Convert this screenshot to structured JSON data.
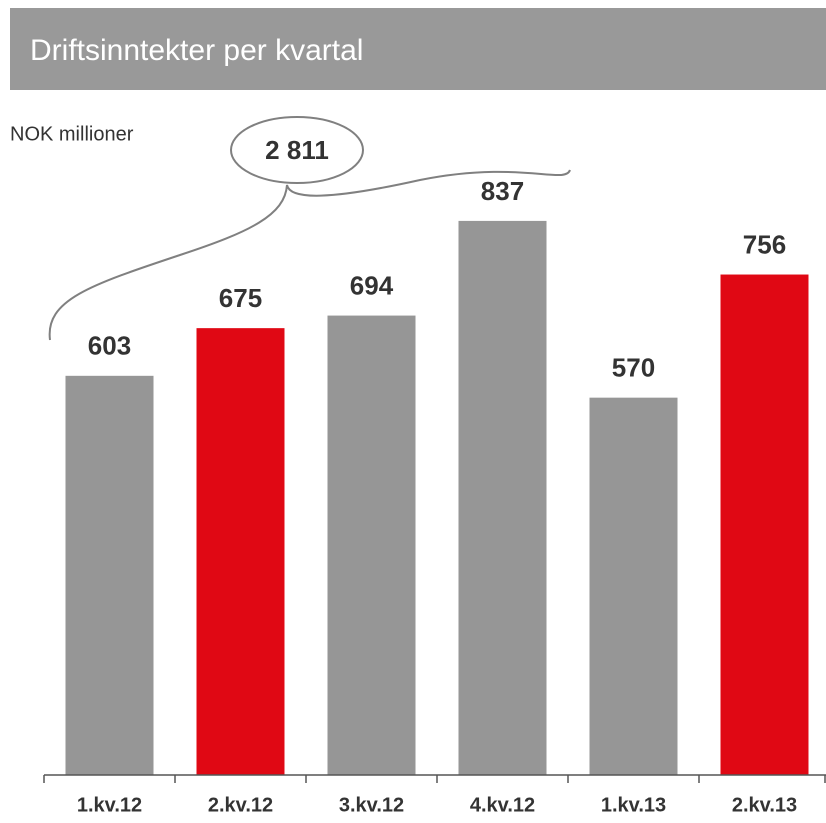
{
  "chart_data": {
    "type": "bar",
    "title": "Driftsinntekter per kvartal",
    "subtitle": "NOK millioner",
    "annotation": "2 811",
    "categories": [
      "1.kv.12",
      "2.kv.12",
      "3.kv.12",
      "4.kv.12",
      "1.kv.13",
      "2.kv.13"
    ],
    "values": [
      603,
      675,
      694,
      837,
      570,
      756
    ],
    "colors": [
      "#969696",
      "#e00814",
      "#969696",
      "#969696",
      "#969696",
      "#e00814"
    ],
    "ylim": [
      0,
      1000
    ]
  }
}
